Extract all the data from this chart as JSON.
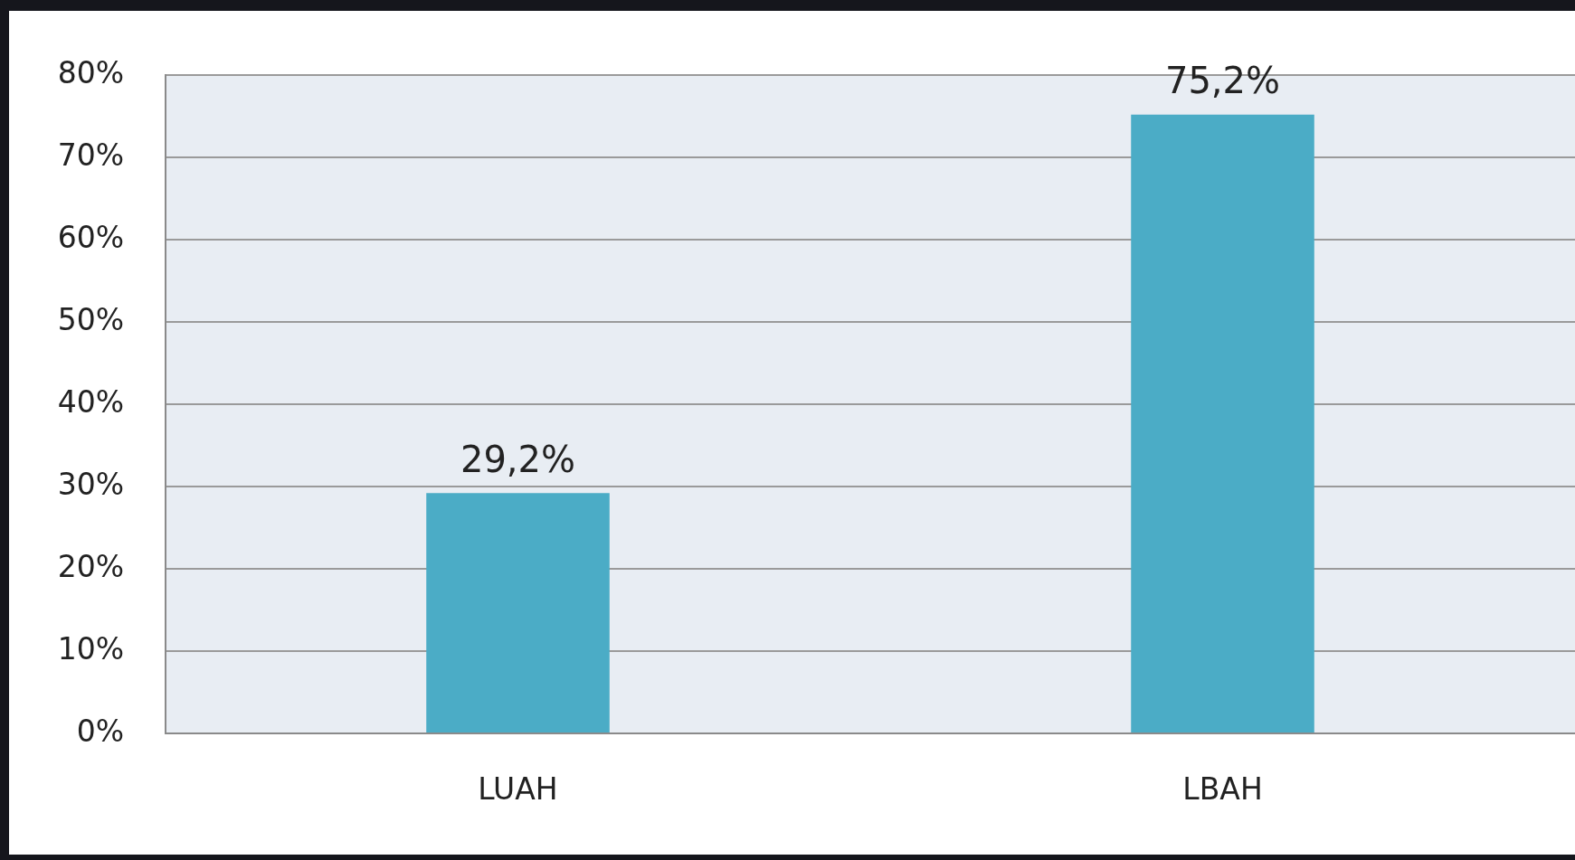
{
  "chart_data": {
    "type": "bar",
    "categories": [
      "LUAH",
      "LBAH"
    ],
    "values": [
      29.2,
      75.2
    ],
    "value_labels": [
      "29,2%",
      "75,2%"
    ],
    "color": "#4bacc6",
    "ylim": [
      0,
      80
    ],
    "yticks": [
      {
        "value": 0,
        "label": "0%"
      },
      {
        "value": 10,
        "label": "10%"
      },
      {
        "value": 20,
        "label": "20%"
      },
      {
        "value": 30,
        "label": "30%"
      },
      {
        "value": 40,
        "label": "40%"
      },
      {
        "value": 50,
        "label": "50%"
      },
      {
        "value": 60,
        "label": "60%"
      },
      {
        "value": 70,
        "label": "70%"
      },
      {
        "value": 80,
        "label": "80%"
      }
    ],
    "grid": "y",
    "legend": false
  }
}
